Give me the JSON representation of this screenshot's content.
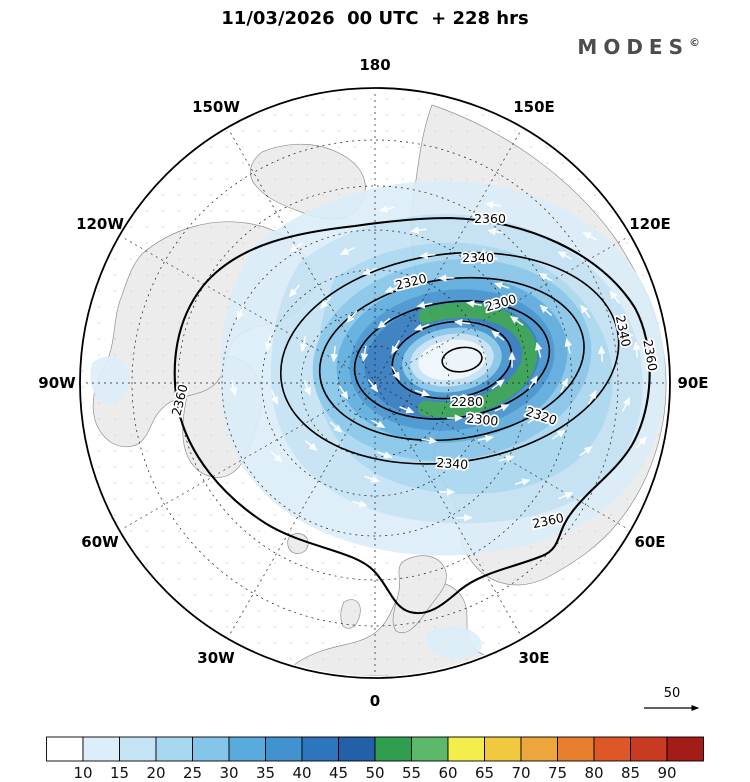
{
  "header": {
    "title": "11/03/2026  00 UTC  + 228 hrs",
    "brand": "MODES",
    "brand_sup": "©"
  },
  "chart_data": {
    "type": "heatmap",
    "title": "11/03/2026 00 UTC + 228 hrs",
    "projection": "north_polar_stereographic",
    "lon_labels": [
      "180",
      "150E",
      "120E",
      "90E",
      "60E",
      "30E",
      "0",
      "30W",
      "60W",
      "90W",
      "120W",
      "150W"
    ],
    "contour_levels": [
      2280,
      2300,
      2320,
      2340,
      2360
    ],
    "contour_labels": [
      "2360",
      "2340",
      "2320",
      "2300",
      "2280",
      "2300",
      "2320",
      "2340",
      "2340",
      "2360",
      "2360",
      "2360"
    ],
    "shading_levels": [
      10,
      15,
      20,
      25,
      30,
      35,
      40,
      45,
      50,
      55,
      60,
      65,
      70,
      75,
      80,
      85,
      90
    ],
    "colorbar": {
      "tick_labels": [
        "10",
        "15",
        "20",
        "25",
        "30",
        "35",
        "40",
        "45",
        "50",
        "55",
        "60",
        "65",
        "70",
        "75",
        "80",
        "85",
        "90"
      ],
      "cell_colors": [
        "#ffffff",
        "#dceef9",
        "#c4e3f4",
        "#a8d7f0",
        "#85c5e9",
        "#5aabdd",
        "#4192cf",
        "#2d76bd",
        "#2260a8",
        "#2f9e4f",
        "#5cb86b",
        "#f3ee4c",
        "#f0c93f",
        "#eda63c",
        "#e77f2f",
        "#dd5727",
        "#c93a22",
        "#a31c17"
      ]
    },
    "vector_reference_label": "50"
  }
}
